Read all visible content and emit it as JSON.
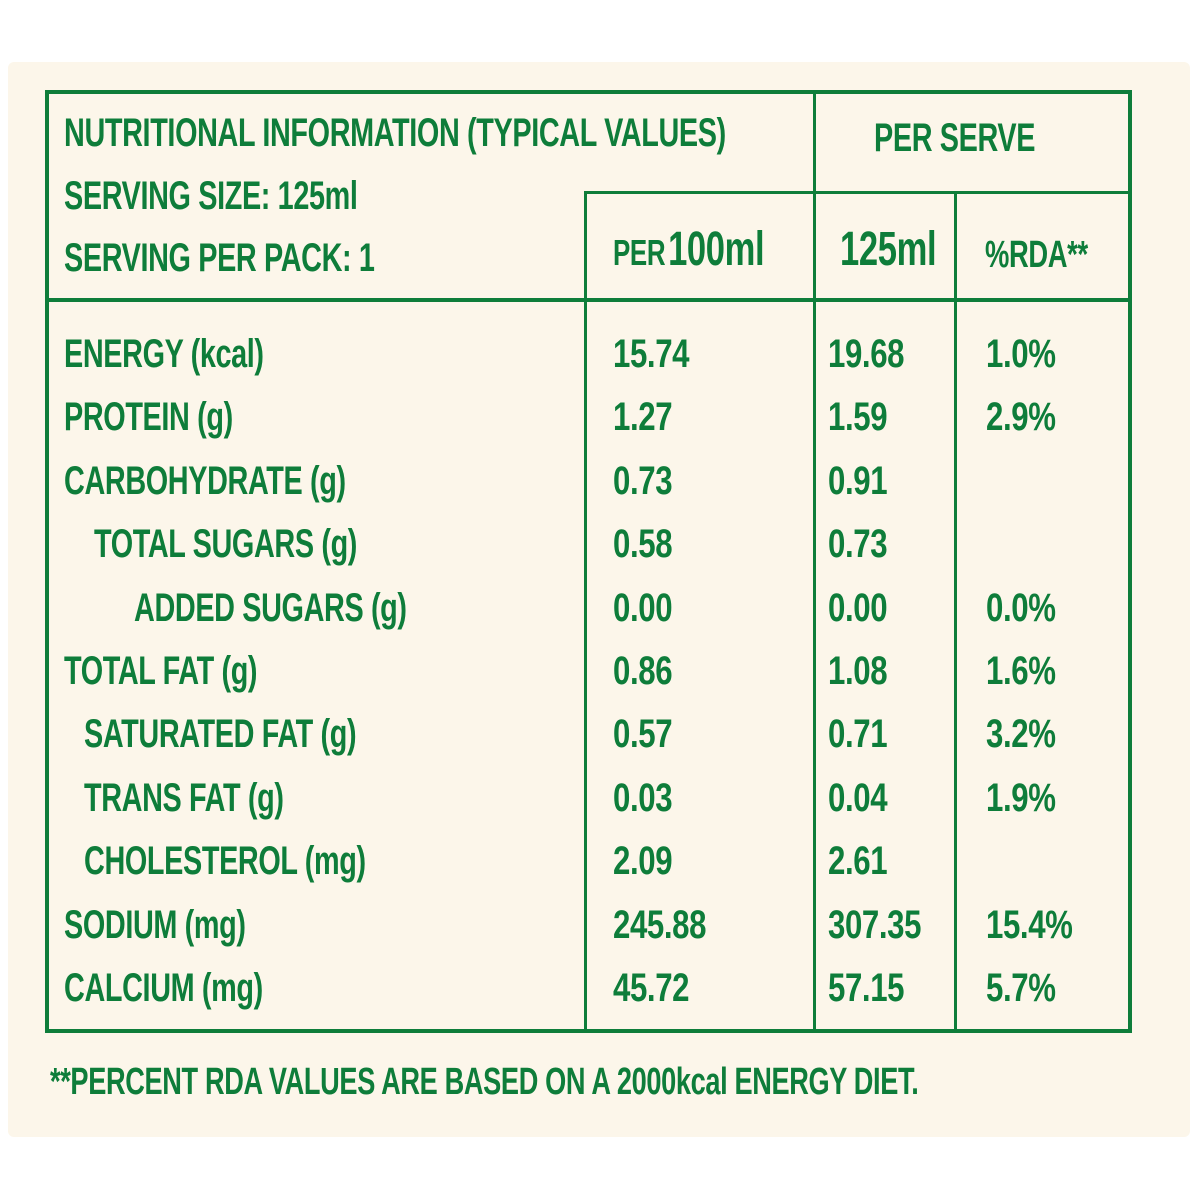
{
  "theme": {
    "green": "#0e7d3a",
    "background": "#fcf6ea"
  },
  "header": {
    "title": "NUTRITIONAL INFORMATION (TYPICAL VALUES)",
    "serving_size": "SERVING SIZE: 125ml",
    "serving_per_pack": "SERVING PER PACK: 1",
    "per_serve": "PER SERVE",
    "columns": {
      "per100_prefix": "PER",
      "per100_amount": "100ml",
      "per_serve_amount": "125ml",
      "rda": "%RDA**"
    }
  },
  "rows": [
    {
      "label": "ENERGY (kcal)",
      "indent": 0,
      "per100": "15.74",
      "serve": "19.68",
      "rda": "1.0%"
    },
    {
      "label": "PROTEIN (g)",
      "indent": 0,
      "per100": "1.27",
      "serve": "1.59",
      "rda": "2.9%"
    },
    {
      "label": "CARBOHYDRATE (g)",
      "indent": 0,
      "per100": "0.73",
      "serve": "0.91",
      "rda": ""
    },
    {
      "label": "TOTAL SUGARS (g)",
      "indent": 1,
      "per100": "0.58",
      "serve": "0.73",
      "rda": ""
    },
    {
      "label": "ADDED SUGARS (g)",
      "indent": 2,
      "per100": "0.00",
      "serve": "0.00",
      "rda": "0.0%"
    },
    {
      "label": "TOTAL FAT (g)",
      "indent": 0,
      "per100": "0.86",
      "serve": "1.08",
      "rda": "1.6%"
    },
    {
      "label": "SATURATED FAT (g)",
      "indent": 3,
      "per100": "0.57",
      "serve": "0.71",
      "rda": "3.2%"
    },
    {
      "label": "TRANS FAT (g)",
      "indent": 3,
      "per100": "0.03",
      "serve": "0.04",
      "rda": "1.9%"
    },
    {
      "label": "CHOLESTEROL (mg)",
      "indent": 3,
      "per100": "2.09",
      "serve": "2.61",
      "rda": ""
    },
    {
      "label": "SODIUM (mg)",
      "indent": 0,
      "per100": "245.88",
      "serve": "307.35",
      "rda": "15.4%"
    },
    {
      "label": "CALCIUM (mg)",
      "indent": 0,
      "per100": "45.72",
      "serve": "57.15",
      "rda": "5.7%"
    }
  ],
  "footer": "**PERCENT RDA VALUES ARE BASED ON A 2000kcal ENERGY DIET."
}
